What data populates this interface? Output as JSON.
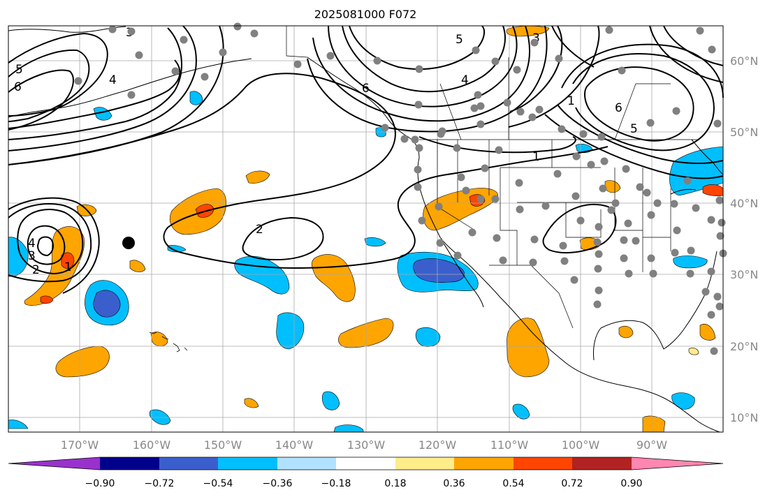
{
  "map": {
    "title": "2025081000 F072",
    "lon_labels": [
      "170°W",
      "160°W",
      "150°W",
      "140°W",
      "130°W",
      "120°W",
      "110°W",
      "100°W",
      "90°W"
    ],
    "lat_labels": [
      "60°N",
      "50°N",
      "40°N",
      "30°N",
      "20°N",
      "10°N"
    ],
    "contour_labels": [
      "5",
      "6",
      "4",
      "3",
      "6",
      "5",
      "4",
      "3",
      "5",
      "6",
      "2",
      "1",
      "2",
      "3",
      "4",
      "1",
      "1"
    ]
  },
  "colorbar": {
    "ticks": [
      "−0.90",
      "−0.72",
      "−0.54",
      "−0.36",
      "−0.18",
      "0.18",
      "0.36",
      "0.54",
      "0.72",
      "0.90"
    ],
    "colors": [
      "#9932cc",
      "#00008b",
      "#3a5fcd",
      "#00bfff",
      "#b0e2ff",
      "#ffffff",
      "#ffec8b",
      "#ffa500",
      "#ff4500",
      "#b22222",
      "#ff86b0"
    ]
  },
  "palette": {
    "neg_blue": "#00bfff",
    "neg_dark": "#3a5fcd",
    "pos_orange": "#ffa500",
    "pos_red": "#ff4500",
    "grid": "#a9a9a9",
    "station": "#808080"
  }
}
